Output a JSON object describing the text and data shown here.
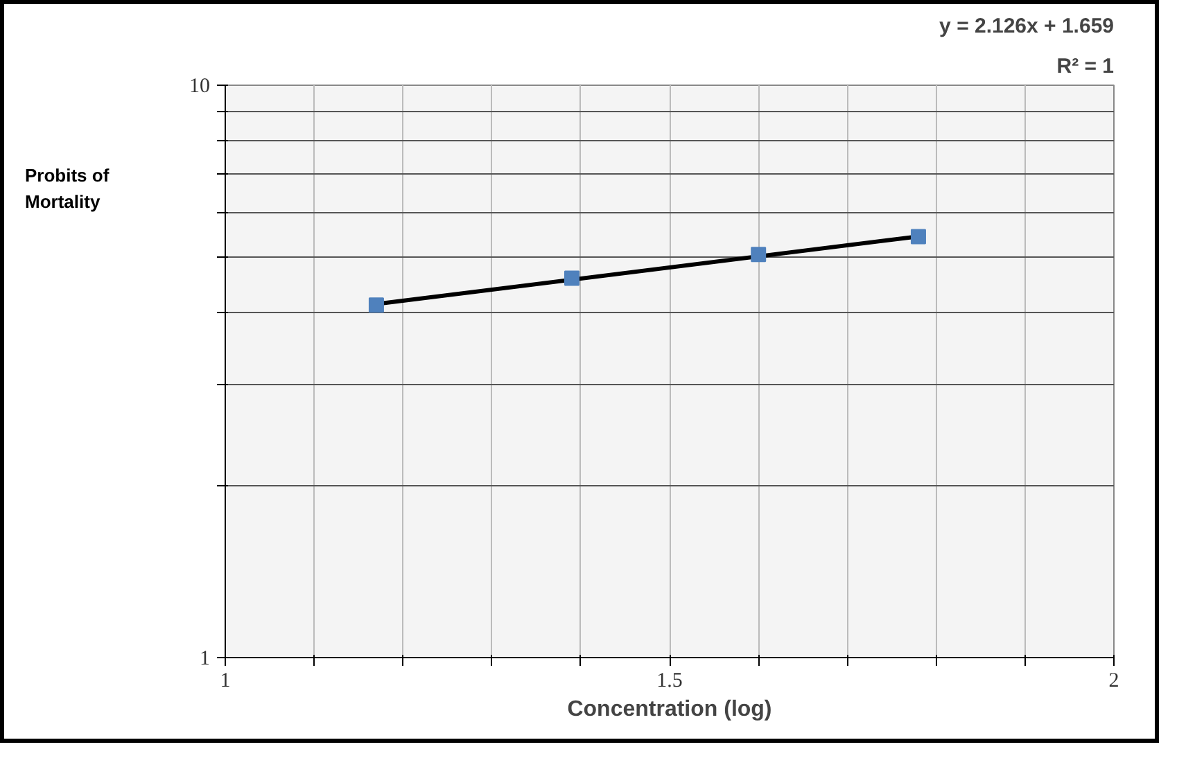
{
  "chart_data": {
    "type": "scatter",
    "xlabel": "Concentration (log)",
    "ylabel": "Probits of\nMortality",
    "annotations": [
      "y = 2.126x + 1.659",
      "R² = 1"
    ],
    "log": "y",
    "grid": true,
    "marker": "square",
    "xlim": [
      1,
      2
    ],
    "ylim": [
      1,
      10
    ],
    "xticks": [
      1,
      {
        "value": 1.1,
        "label": null
      },
      {
        "value": 1.2,
        "label": null
      },
      {
        "value": 1.3,
        "label": null
      },
      {
        "value": 1.4,
        "label": null
      },
      1.5,
      {
        "value": 1.6,
        "label": null
      },
      {
        "value": 1.7,
        "label": null
      },
      {
        "value": 1.8,
        "label": null
      },
      {
        "value": 1.9,
        "label": null
      },
      2
    ],
    "yticks": [
      1,
      {
        "value": 2,
        "label": null
      },
      {
        "value": 3,
        "label": null
      },
      {
        "value": 4,
        "label": null
      },
      {
        "value": 5,
        "label": null
      },
      {
        "value": 6,
        "label": null
      },
      {
        "value": 7,
        "label": null
      },
      {
        "value": 8,
        "label": null
      },
      {
        "value": 9,
        "label": null
      },
      10
    ],
    "series": [
      {
        "type": "line",
        "marker": "none",
        "color": "#000000",
        "x": [
          1.17,
          1.78
        ],
        "values": [
          4.146,
          5.443
        ]
      },
      {
        "color": "#4f81bd",
        "x": [
          1.17,
          1.39,
          1.6,
          1.78
        ],
        "values": [
          4.13,
          4.6,
          5.06,
          5.44
        ]
      }
    ]
  }
}
